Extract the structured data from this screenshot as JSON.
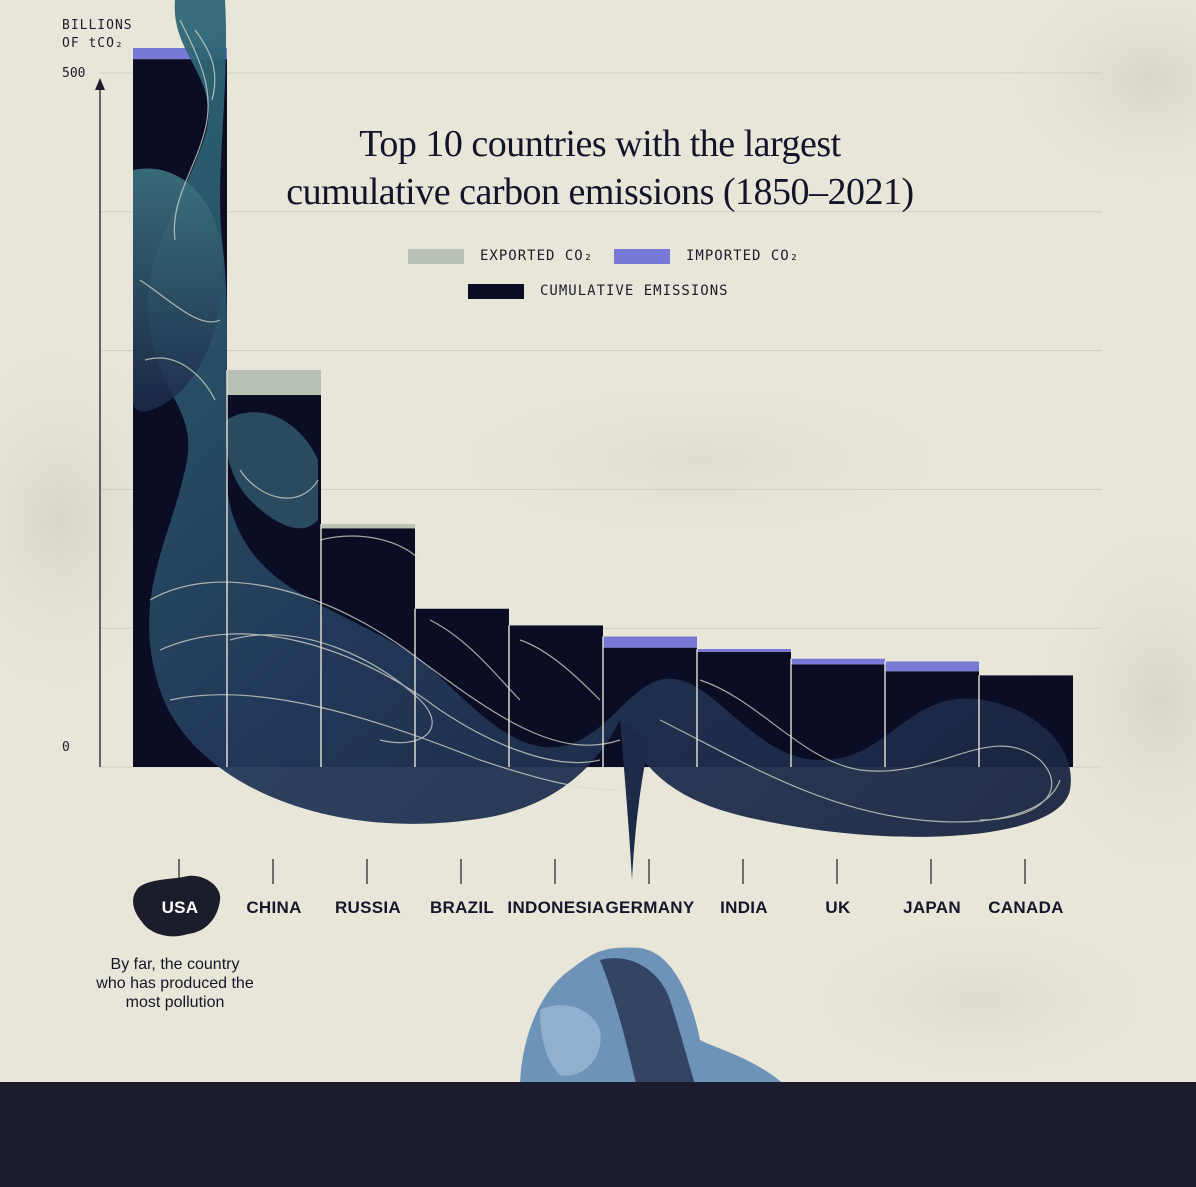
{
  "title_lines": [
    "Top 10 countries with the largest",
    "cumulative carbon emissions (1850–2021)"
  ],
  "y_axis": {
    "unit_lines": [
      "BILLIONS",
      "OF tCO₂"
    ],
    "ticks": [
      "500",
      "0"
    ]
  },
  "legend": {
    "exported": "EXPORTED CO₂",
    "imported": "IMPORTED CO₂",
    "cumulative": "CUMULATIVE EMISSIONS"
  },
  "annotation": "By far, the country who has produced the most pollution",
  "colors": {
    "background": "#e8e6d8",
    "cumulative": "#0b0d24",
    "imported": "#7878d6",
    "exported": "#b7c2b4",
    "flow_teal": "#2f5a6a",
    "flow_navy": "#1d2a48",
    "ground": "#1b1d2e",
    "accent_blue": "#6e93b8"
  },
  "chart_data": {
    "type": "bar",
    "stacked": true,
    "ylabel": "BILLIONS OF tCO₂",
    "ylim": [
      0,
      520
    ],
    "grid": true,
    "legend_position": "top-center",
    "categories": [
      "USA",
      "CHINA",
      "RUSSIA",
      "BRAZIL",
      "INDONESIA",
      "GERMANY",
      "INDIA",
      "UK",
      "JAPAN",
      "CANADA"
    ],
    "series": [
      {
        "name": "CUMULATIVE EMISSIONS",
        "values": [
          510,
          268,
          172,
          114,
          102,
          86,
          83,
          74,
          69,
          66
        ]
      },
      {
        "name": "IMPORTED CO₂",
        "values": [
          8,
          0,
          0,
          0,
          0,
          8,
          2,
          4,
          7,
          0
        ]
      },
      {
        "name": "EXPORTED CO₂",
        "values": [
          0,
          18,
          3,
          0,
          0,
          0,
          0,
          0,
          0,
          0
        ]
      }
    ]
  }
}
